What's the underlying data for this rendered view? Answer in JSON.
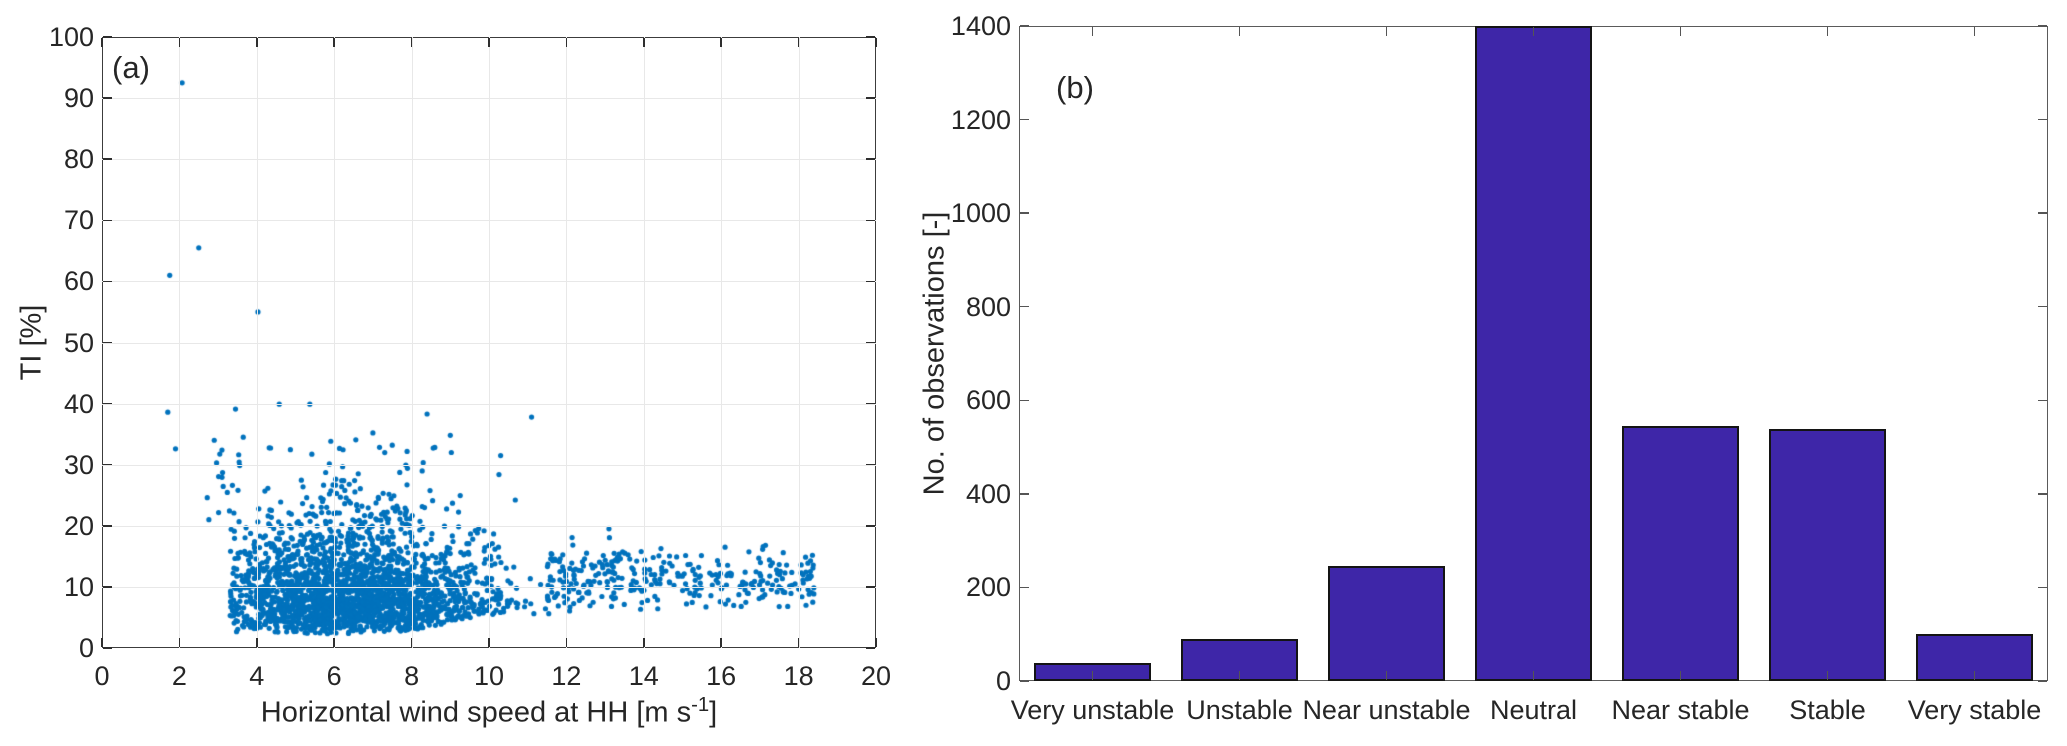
{
  "figure": {
    "panel_a_label": "(a)",
    "panel_b_label": "(b)"
  },
  "chart_data": [
    {
      "type": "scatter",
      "panel": "a",
      "corner_label": "(a)",
      "xlabel_parts": {
        "main": "Horizontal wind speed at HH [m s",
        "sup": "-1",
        "end": "]"
      },
      "xlabel_plain": "Horizontal wind speed at HH [m s^-1]",
      "ylabel": "TI [%]",
      "xlim": [
        0,
        20
      ],
      "ylim": [
        0,
        100
      ],
      "xticks": [
        0,
        2,
        4,
        6,
        8,
        10,
        12,
        14,
        16,
        18,
        20
      ],
      "yticks": [
        0,
        10,
        20,
        30,
        40,
        50,
        60,
        70,
        80,
        90,
        100
      ],
      "grid": true,
      "grid_color": "#e8e8e8",
      "marker_color": "#0072BD",
      "marker_radius_px": 2.6,
      "notable_points": [
        [
          2.07,
          92.5
        ],
        [
          2.5,
          65.5
        ],
        [
          1.75,
          61.0
        ],
        [
          4.03,
          55.0
        ],
        [
          1.7,
          38.6
        ],
        [
          3.45,
          39.1
        ],
        [
          4.58,
          39.9
        ],
        [
          5.37,
          39.9
        ],
        [
          1.9,
          32.6
        ],
        [
          2.9,
          34.0
        ],
        [
          3.1,
          32.4
        ],
        [
          3.65,
          34.5
        ],
        [
          8.4,
          38.3
        ],
        [
          7.5,
          33.2
        ],
        [
          11.1,
          37.8
        ],
        [
          7.0,
          35.2
        ],
        [
          9.0,
          34.8
        ],
        [
          10.3,
          31.5
        ],
        [
          13.1,
          19.5
        ],
        [
          16.1,
          16.5
        ]
      ],
      "point_cloud_spec": {
        "seed": 42,
        "clusters": [
          {
            "kind": "core",
            "n": 2400,
            "x_mean": 6.35,
            "x_sd": 1.8,
            "x_min": 3.3,
            "x_max": 11.9,
            "y_base": 2.2,
            "y_gamma_scale": 4.0,
            "envelope_hi_start_x": 7.5,
            "envelope_hi_max": 36,
            "envelope_hi_slope": 2.0,
            "envelope_lo_start_x": 7.0,
            "envelope_lo_min": 1.6,
            "envelope_lo_slope": 1.3,
            "envelope_lo_cap": 5.5
          },
          {
            "kind": "tail",
            "n": 320,
            "x_min": 11.5,
            "x_max": 18.4,
            "x_power": 1.25,
            "y_mean": 11.3,
            "y_sd": 2.6,
            "y_min": 6.0,
            "y_max": 19.0
          },
          {
            "kind": "sparse",
            "n": 16,
            "x_min": 2.55,
            "x_max": 3.6,
            "y_min": 18,
            "y_max": 33
          }
        ]
      }
    },
    {
      "type": "bar",
      "panel": "b",
      "corner_label": "(b)",
      "categories": [
        "Very unstable",
        "Unstable",
        "Near unstable",
        "Neutral",
        "Near stable",
        "Stable",
        "Very stable"
      ],
      "values": [
        38,
        90,
        245,
        1400,
        545,
        538,
        100
      ],
      "ylabel": "No. of observations [-]",
      "xlabel": "",
      "ylim": [
        0,
        1400
      ],
      "yticks": [
        0,
        200,
        400,
        600,
        800,
        1000,
        1200,
        1400
      ],
      "grid": false,
      "bar_color": "#3E26A8",
      "bar_edge_color": "#141414",
      "bar_width_fraction": 0.8,
      "legend": null
    }
  ]
}
